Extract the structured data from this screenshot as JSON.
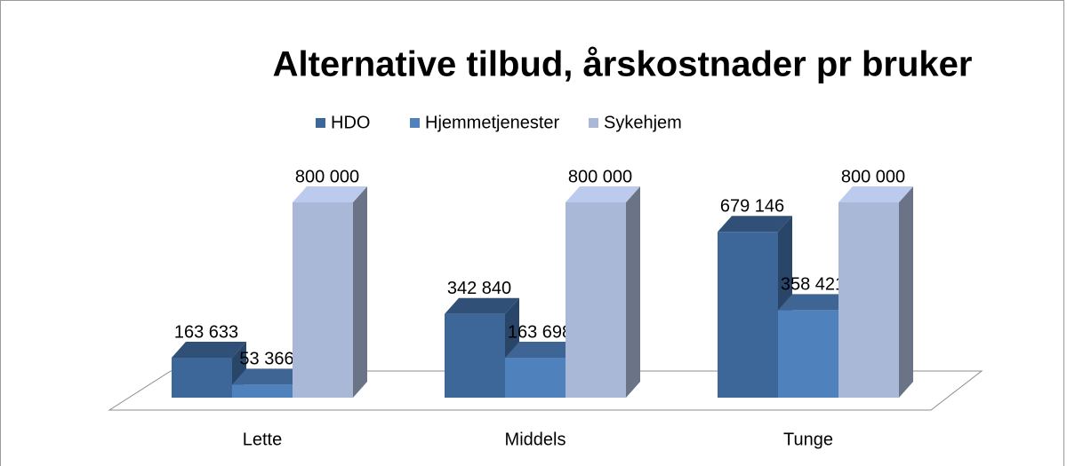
{
  "chart_data": {
    "type": "bar3d",
    "title": "Alternative tilbud, årskostnader pr bruker",
    "categories": [
      "Lette",
      "Middels",
      "Tunge"
    ],
    "series": [
      {
        "name": "HDO",
        "color": "#3d6699",
        "values": [
          163633,
          342840,
          679146
        ],
        "value_labels": [
          "163 633",
          "342 840",
          "679 146"
        ]
      },
      {
        "name": "Hjemmetjenester",
        "color": "#4f81bd",
        "values": [
          53366,
          163698,
          358421
        ],
        "value_labels": [
          "53 366",
          "163 698",
          "358 421"
        ]
      },
      {
        "name": "Sykehjem",
        "color": "#aab8d7",
        "values": [
          800000,
          800000,
          800000
        ],
        "value_labels": [
          "800 000",
          "800 000",
          "800 000"
        ]
      }
    ],
    "legend": "top"
  }
}
